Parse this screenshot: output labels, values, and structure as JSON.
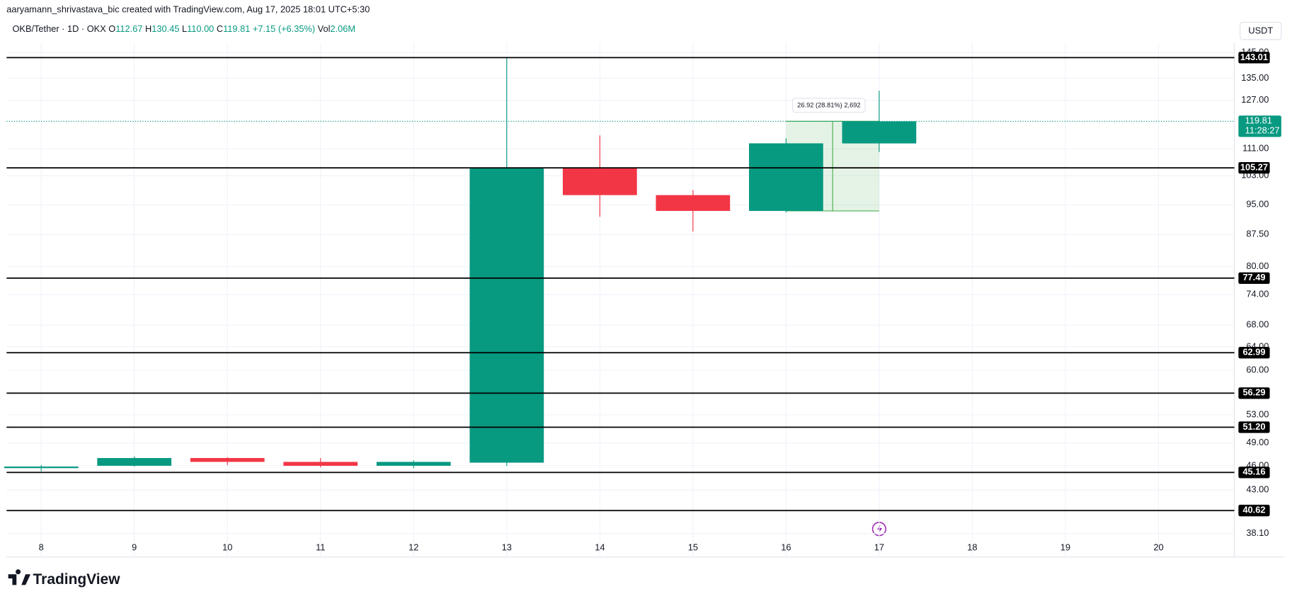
{
  "header": "aaryamann_shrivastava_bic created with TradingView.com, Aug 17, 2025 18:01 UTC+5:30",
  "brand": "TradingView",
  "chart_data": {
    "type": "candlestick",
    "symbol": "OKB/Tether · 1D · OKX",
    "legend": [
      {
        "label": "O",
        "value": "112.67"
      },
      {
        "label": "H",
        "value": "130.45"
      },
      {
        "label": "L",
        "value": "110.00"
      },
      {
        "label": "C",
        "value": "119.81"
      }
    ],
    "change": "+7.15 (+6.35%)",
    "volume": {
      "label": "Vol",
      "value": "2.06M"
    },
    "currency": "USDT",
    "categories": [
      "8",
      "9",
      "10",
      "11",
      "12",
      "13",
      "14",
      "15",
      "16",
      "17",
      "18",
      "19",
      "20"
    ],
    "open": [
      45.7,
      46.0,
      47.0,
      46.5,
      46.0,
      46.4,
      105.27,
      97.6,
      93.4,
      112.67,
      null,
      null,
      null
    ],
    "high": [
      46.1,
      47.2,
      47.1,
      47.0,
      46.7,
      143.0,
      115.2,
      99.0,
      114.3,
      130.45,
      null,
      null,
      null
    ],
    "low": [
      45.3,
      45.9,
      46.1,
      45.8,
      45.7,
      46.0,
      91.9,
      88.2,
      93.0,
      110.0,
      null,
      null,
      null
    ],
    "close": [
      45.9,
      47.0,
      46.5,
      46.0,
      46.5,
      105.27,
      97.6,
      93.4,
      112.7,
      119.81,
      null,
      null,
      null
    ],
    "up_color": "#089981",
    "down_color": "#f23645",
    "yscale": "log",
    "ylim": [
      35.7,
      149.0
    ],
    "yticks": [
      {
        "value": 145,
        "label": "145.00"
      },
      {
        "value": 135,
        "label": "135.00"
      },
      {
        "value": 127,
        "label": "127.00"
      },
      {
        "value": 111,
        "label": "111.00"
      },
      {
        "value": 103,
        "label": "103.00"
      },
      {
        "value": 95,
        "label": "95.00"
      },
      {
        "value": 87.5,
        "label": "87.50"
      },
      {
        "value": 80,
        "label": "80.00"
      },
      {
        "value": 74,
        "label": "74.00"
      },
      {
        "value": 68,
        "label": "68.00"
      },
      {
        "value": 64,
        "label": "64.00"
      },
      {
        "value": 60,
        "label": "60.00"
      },
      {
        "value": 53,
        "label": "53.00"
      },
      {
        "value": 49,
        "label": "49.00"
      },
      {
        "value": 46,
        "label": "46.00"
      },
      {
        "value": 43,
        "label": "43.00"
      },
      {
        "value": 38.1,
        "label": "38.10"
      }
    ],
    "grid": true,
    "levels": [
      143.01,
      105.27,
      77.49,
      62.99,
      56.29,
      {
        "value": 51.2,
        "label": "51.20"
      },
      45.16,
      40.62
    ],
    "last_price": {
      "value": 119.81,
      "countdown": "11:28:27",
      "color": "#089981"
    },
    "measure": {
      "text": "26.92 (28.81%) 2,692"
    }
  }
}
